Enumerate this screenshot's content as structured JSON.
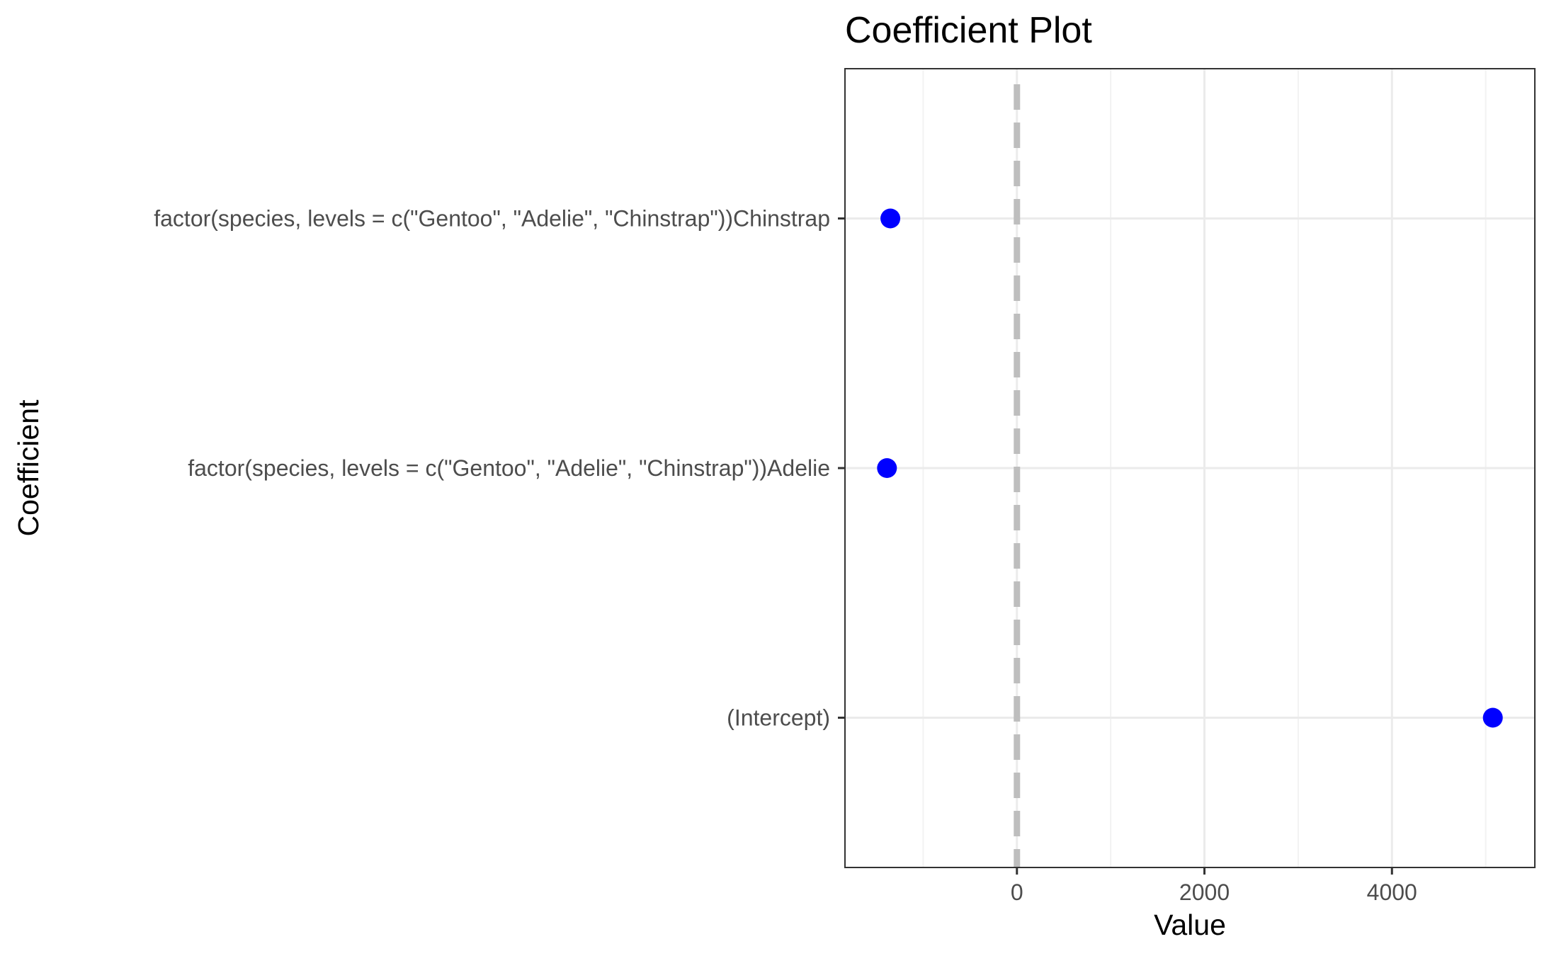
{
  "chart_data": {
    "type": "scatter",
    "title": "Coefficient Plot",
    "xlabel": "Value",
    "ylabel": "Coefficient",
    "categories": [
      "(Intercept)",
      "factor(species, levels = c(\"Gentoo\", \"Adelie\", \"Chinstrap\"))Adelie",
      "factor(species, levels = c(\"Gentoo\", \"Adelie\", \"Chinstrap\"))Chinstrap"
    ],
    "series": [
      {
        "values": [
          5076,
          -1386,
          -1350
        ]
      }
    ],
    "xlim": [
      -1834,
      5524
    ],
    "x_ticks": [
      0,
      2000,
      4000
    ],
    "x_tick_labels": [
      "0",
      "2000",
      "4000"
    ],
    "reference_line": {
      "x": 0,
      "style": "dashed",
      "color": "#bebebe"
    },
    "point_color": "#0000ff",
    "grid": true,
    "legend": "none"
  }
}
